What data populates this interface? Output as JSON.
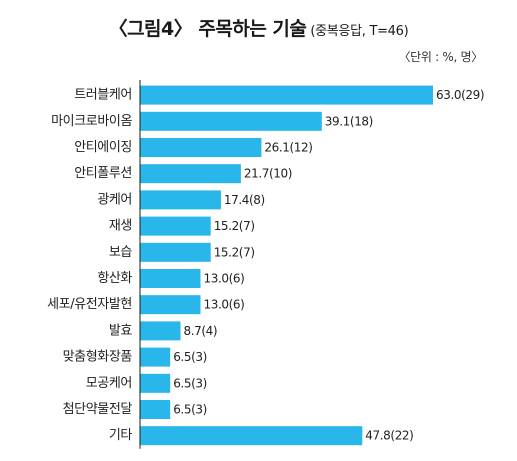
{
  "title": "〈그림4〉 주목하는 기술",
  "subtitle": "(중복응답, T=46)",
  "unit_note": "〈단위 : %, 명〉",
  "colors": {
    "bar": "#29b6ea",
    "text": "#222222",
    "axis": "#1a1a1a"
  },
  "chart_data": {
    "type": "bar",
    "orientation": "horizontal",
    "categories": [
      "트러블케어",
      "마이크로바이옴",
      "안티에이징",
      "안티폴루션",
      "광케어",
      "재생",
      "보습",
      "항산화",
      "세포/유전자발현",
      "발효",
      "맞춤형화장품",
      "모공케어",
      "첨단약물전달",
      "기타"
    ],
    "values": [
      63.0,
      39.1,
      26.1,
      21.7,
      17.4,
      15.2,
      15.2,
      13.0,
      13.0,
      8.7,
      6.5,
      6.5,
      6.5,
      47.8
    ],
    "counts": [
      29,
      18,
      12,
      10,
      8,
      7,
      7,
      6,
      6,
      4,
      3,
      3,
      3,
      22
    ],
    "data_labels": [
      "63.0(29)",
      "39.1(18)",
      "26.1(12)",
      "21.7(10)",
      "17.4(8)",
      "15.2(7)",
      "15.2(7)",
      "13.0(6)",
      "13.0(6)",
      "8.7(4)",
      "6.5(3)",
      "6.5(3)",
      "6.5(3)",
      "47.8(22)"
    ],
    "xlim": [
      0,
      63.0
    ],
    "grid": false,
    "legend": "none"
  }
}
